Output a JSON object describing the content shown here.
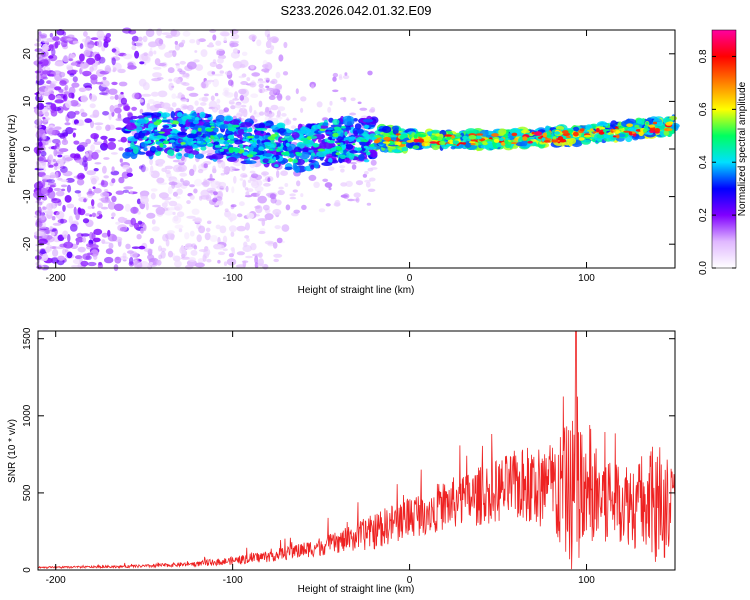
{
  "page": {
    "title": "S233.2026.042.01.32.E09"
  },
  "chart_data": [
    {
      "type": "heatmap",
      "name": "spectrogram",
      "xlabel": "Height of straight line (km)",
      "ylabel": "Frequency (Hz)",
      "xlim": [
        -210,
        150
      ],
      "ylim": [
        -25,
        25
      ],
      "xticks": [
        -200,
        -100,
        0,
        100
      ],
      "yticks": [
        20,
        10,
        0,
        -10,
        -20
      ],
      "colorbar": {
        "label": "Normalized spectral amplitude",
        "range": [
          0.0,
          0.9
        ],
        "ticks": [
          "0.0",
          "0.2",
          "0.4",
          "0.6",
          "0.8"
        ],
        "tick_values": [
          0.0,
          0.2,
          0.4,
          0.6,
          0.8
        ],
        "colors": [
          "#ffffff",
          "#e0b8ff",
          "#8000ff",
          "#0000ff",
          "#00e0ff",
          "#00ff60",
          "#ffff00",
          "#ff8000",
          "#ff0000",
          "#ff00a0"
        ]
      },
      "ridge": {
        "description_points_x": [
          -155,
          -120,
          -100,
          -80,
          -60,
          -40,
          -20,
          0,
          50,
          100,
          150
        ],
        "frequency_hz": [
          3,
          3,
          2,
          1,
          0,
          2,
          2,
          2,
          2,
          3,
          5
        ]
      }
    },
    {
      "type": "line",
      "name": "snr",
      "xlabel": "Height of straight line (km)",
      "ylabel": "SNR (10 * v/v)",
      "xlim": [
        -210,
        150
      ],
      "ylim": [
        0,
        1550
      ],
      "xticks": [
        -200,
        -100,
        0,
        100
      ],
      "yticks": [
        0,
        500,
        1000,
        1500
      ],
      "color": "#ee2222",
      "envelope": {
        "x": [
          -210,
          -180,
          -150,
          -120,
          -100,
          -80,
          -60,
          -40,
          -20,
          0,
          20,
          40,
          60,
          80,
          90,
          95,
          100,
          110,
          120,
          130,
          140,
          145,
          150
        ],
        "base": [
          15,
          20,
          25,
          40,
          60,
          90,
          130,
          180,
          250,
          350,
          420,
          480,
          550,
          520,
          500,
          480,
          480,
          470,
          450,
          430,
          400,
          420,
          500
        ],
        "amplitude": [
          10,
          10,
          15,
          25,
          40,
          60,
          80,
          110,
          180,
          220,
          250,
          300,
          350,
          500,
          700,
          900,
          450,
          550,
          400,
          500,
          650,
          550,
          200
        ]
      },
      "peak": {
        "x": 94,
        "y": 1550
      }
    }
  ]
}
